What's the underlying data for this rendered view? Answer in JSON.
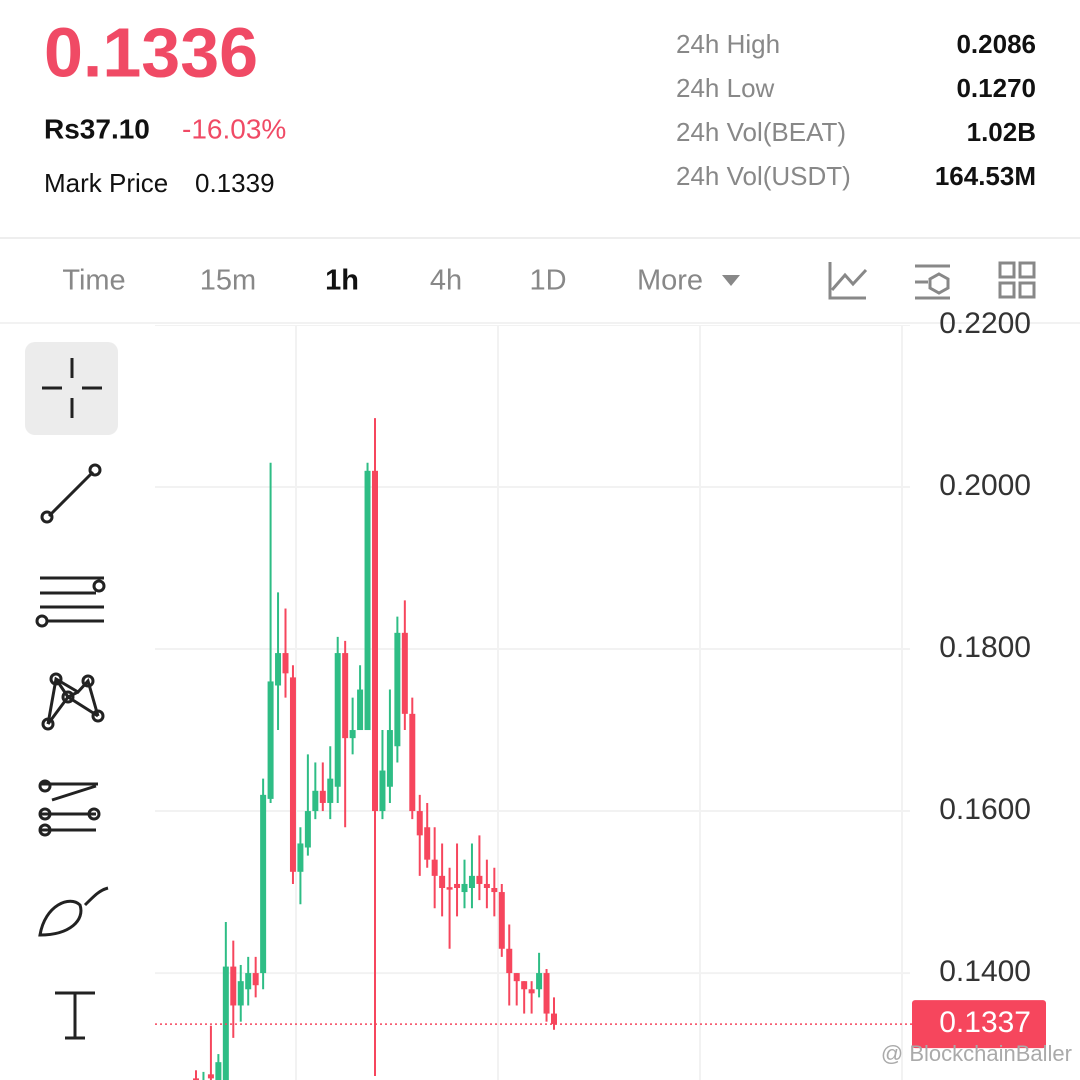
{
  "header": {
    "price": "0.1336",
    "fiat": "Rs37.10",
    "change": "-16.03%",
    "mark_label": "Mark Price",
    "mark_value": "0.1339"
  },
  "stats": [
    {
      "label": "24h High",
      "value": "0.2086"
    },
    {
      "label": "24h Low",
      "value": "0.1270"
    },
    {
      "label": "24h Vol(BEAT)",
      "value": "1.02B"
    },
    {
      "label": "24h Vol(USDT)",
      "value": "164.53M"
    }
  ],
  "tabs": [
    "Time",
    "15m",
    "1h",
    "4h",
    "1D",
    "More"
  ],
  "active_tab": 2,
  "watermark": "@ BlockchainBaller",
  "chart_data": {
    "type": "candlestick",
    "ylim": [
      0.1268,
      0.22
    ],
    "yticks": [
      {
        "value": 0.22,
        "label": "0.2200"
      },
      {
        "value": 0.2,
        "label": "0.2000"
      },
      {
        "value": 0.18,
        "label": "0.1800"
      },
      {
        "value": 0.16,
        "label": "0.1600"
      },
      {
        "value": 0.14,
        "label": "0.1400"
      }
    ],
    "grid": true,
    "up_color": "#2ebd85",
    "down_color": "#f6465d",
    "last_price": 0.1337,
    "open": [
      0.127,
      0.1268,
      0.1275,
      0.1268,
      0.1268,
      0.1408,
      0.136,
      0.138,
      0.14,
      0.14,
      0.1615,
      0.1755,
      0.1795,
      0.1765,
      0.1525,
      0.1555,
      0.16,
      0.1625,
      0.161,
      0.163,
      0.1795,
      0.169,
      0.17,
      0.17,
      0.202,
      0.16,
      0.163,
      0.168,
      0.182,
      0.172,
      0.16,
      0.158,
      0.154,
      0.152,
      0.1506,
      0.151,
      0.15,
      0.1505,
      0.152,
      0.151,
      0.1505,
      0.15,
      0.143,
      0.14,
      0.139,
      0.138,
      0.138,
      0.14,
      0.135
    ],
    "high": [
      0.128,
      0.1278,
      0.1335,
      0.13,
      0.1463,
      0.144,
      0.141,
      0.142,
      0.142,
      0.164,
      0.203,
      0.187,
      0.185,
      0.178,
      0.158,
      0.167,
      0.166,
      0.166,
      0.168,
      0.1815,
      0.181,
      0.174,
      0.178,
      0.203,
      0.2085,
      0.17,
      0.175,
      0.184,
      0.186,
      0.174,
      0.162,
      0.161,
      0.158,
      0.156,
      0.153,
      0.156,
      0.154,
      0.156,
      0.157,
      0.154,
      0.153,
      0.151,
      0.146,
      0.14,
      0.139,
      0.139,
      0.1425,
      0.1405,
      0.137
    ],
    "low": [
      0.1268,
      0.1268,
      0.1268,
      0.1268,
      0.1268,
      0.132,
      0.134,
      0.136,
      0.137,
      0.138,
      0.161,
      0.17,
      0.174,
      0.151,
      0.1485,
      0.1545,
      0.159,
      0.16,
      0.159,
      0.161,
      0.158,
      0.167,
      0.17,
      0.17,
      0.1273,
      0.159,
      0.161,
      0.166,
      0.17,
      0.159,
      0.152,
      0.153,
      0.148,
      0.147,
      0.143,
      0.147,
      0.148,
      0.148,
      0.149,
      0.148,
      0.147,
      0.142,
      0.136,
      0.136,
      0.135,
      0.135,
      0.137,
      0.134,
      0.133
    ],
    "close": [
      0.1268,
      0.1268,
      0.127,
      0.129,
      0.1408,
      0.136,
      0.139,
      0.14,
      0.1385,
      0.162,
      0.176,
      0.1795,
      0.177,
      0.1525,
      0.156,
      0.16,
      0.1625,
      0.161,
      0.164,
      0.1795,
      0.169,
      0.17,
      0.175,
      0.202,
      0.16,
      0.165,
      0.17,
      0.182,
      0.172,
      0.16,
      0.157,
      0.154,
      0.152,
      0.1505,
      0.1503,
      0.1505,
      0.151,
      0.152,
      0.151,
      0.1505,
      0.15,
      0.143,
      0.14,
      0.139,
      0.138,
      0.1375,
      0.14,
      0.135,
      0.1337
    ]
  }
}
